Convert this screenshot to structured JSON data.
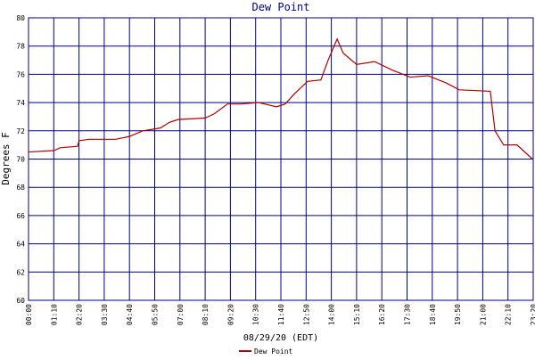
{
  "chart_data": {
    "type": "line",
    "title": "Dew Point",
    "ylabel": "Degrees F",
    "xlabel": "08/29/20 (EDT)",
    "xlim": [
      0,
      1400
    ],
    "ylim": [
      60,
      80
    ],
    "xticks": [
      {
        "value": 0,
        "label": "00:00"
      },
      {
        "value": 70,
        "label": "01:10"
      },
      {
        "value": 140,
        "label": "02:20"
      },
      {
        "value": 210,
        "label": "03:30"
      },
      {
        "value": 280,
        "label": "04:40"
      },
      {
        "value": 350,
        "label": "05:50"
      },
      {
        "value": 420,
        "label": "07:00"
      },
      {
        "value": 490,
        "label": "08:10"
      },
      {
        "value": 560,
        "label": "09:20"
      },
      {
        "value": 630,
        "label": "10:30"
      },
      {
        "value": 700,
        "label": "11:40"
      },
      {
        "value": 770,
        "label": "12:50"
      },
      {
        "value": 840,
        "label": "14:00"
      },
      {
        "value": 910,
        "label": "15:10"
      },
      {
        "value": 980,
        "label": "16:20"
      },
      {
        "value": 1050,
        "label": "17:30"
      },
      {
        "value": 1120,
        "label": "18:40"
      },
      {
        "value": 1190,
        "label": "19:50"
      },
      {
        "value": 1260,
        "label": "21:00"
      },
      {
        "value": 1330,
        "label": "22:10"
      },
      {
        "value": 1400,
        "label": "23:20"
      }
    ],
    "yticks": [
      60,
      62,
      64,
      66,
      68,
      70,
      72,
      74,
      76,
      78,
      80
    ],
    "grid": true,
    "x": [
      0,
      70,
      88,
      136,
      140,
      168,
      242,
      280,
      317,
      366,
      391,
      415,
      490,
      515,
      552,
      589,
      638,
      688,
      712,
      737,
      774,
      811,
      831,
      856,
      873,
      910,
      960,
      1009,
      1059,
      1108,
      1158,
      1195,
      1281,
      1294,
      1318,
      1355,
      1398
    ],
    "series": [
      {
        "name": "Dew Point",
        "color": "#b00000",
        "values": [
          70.5,
          70.6,
          70.8,
          70.9,
          71.3,
          71.4,
          71.4,
          71.6,
          72.0,
          72.2,
          72.6,
          72.8,
          72.9,
          73.2,
          73.9,
          73.9,
          74.0,
          73.7,
          73.9,
          74.6,
          75.5,
          75.6,
          77.0,
          78.5,
          77.5,
          76.7,
          76.9,
          76.3,
          75.8,
          75.9,
          75.4,
          74.9,
          74.8,
          72.0,
          71.0,
          71.0,
          70.0
        ]
      }
    ]
  }
}
